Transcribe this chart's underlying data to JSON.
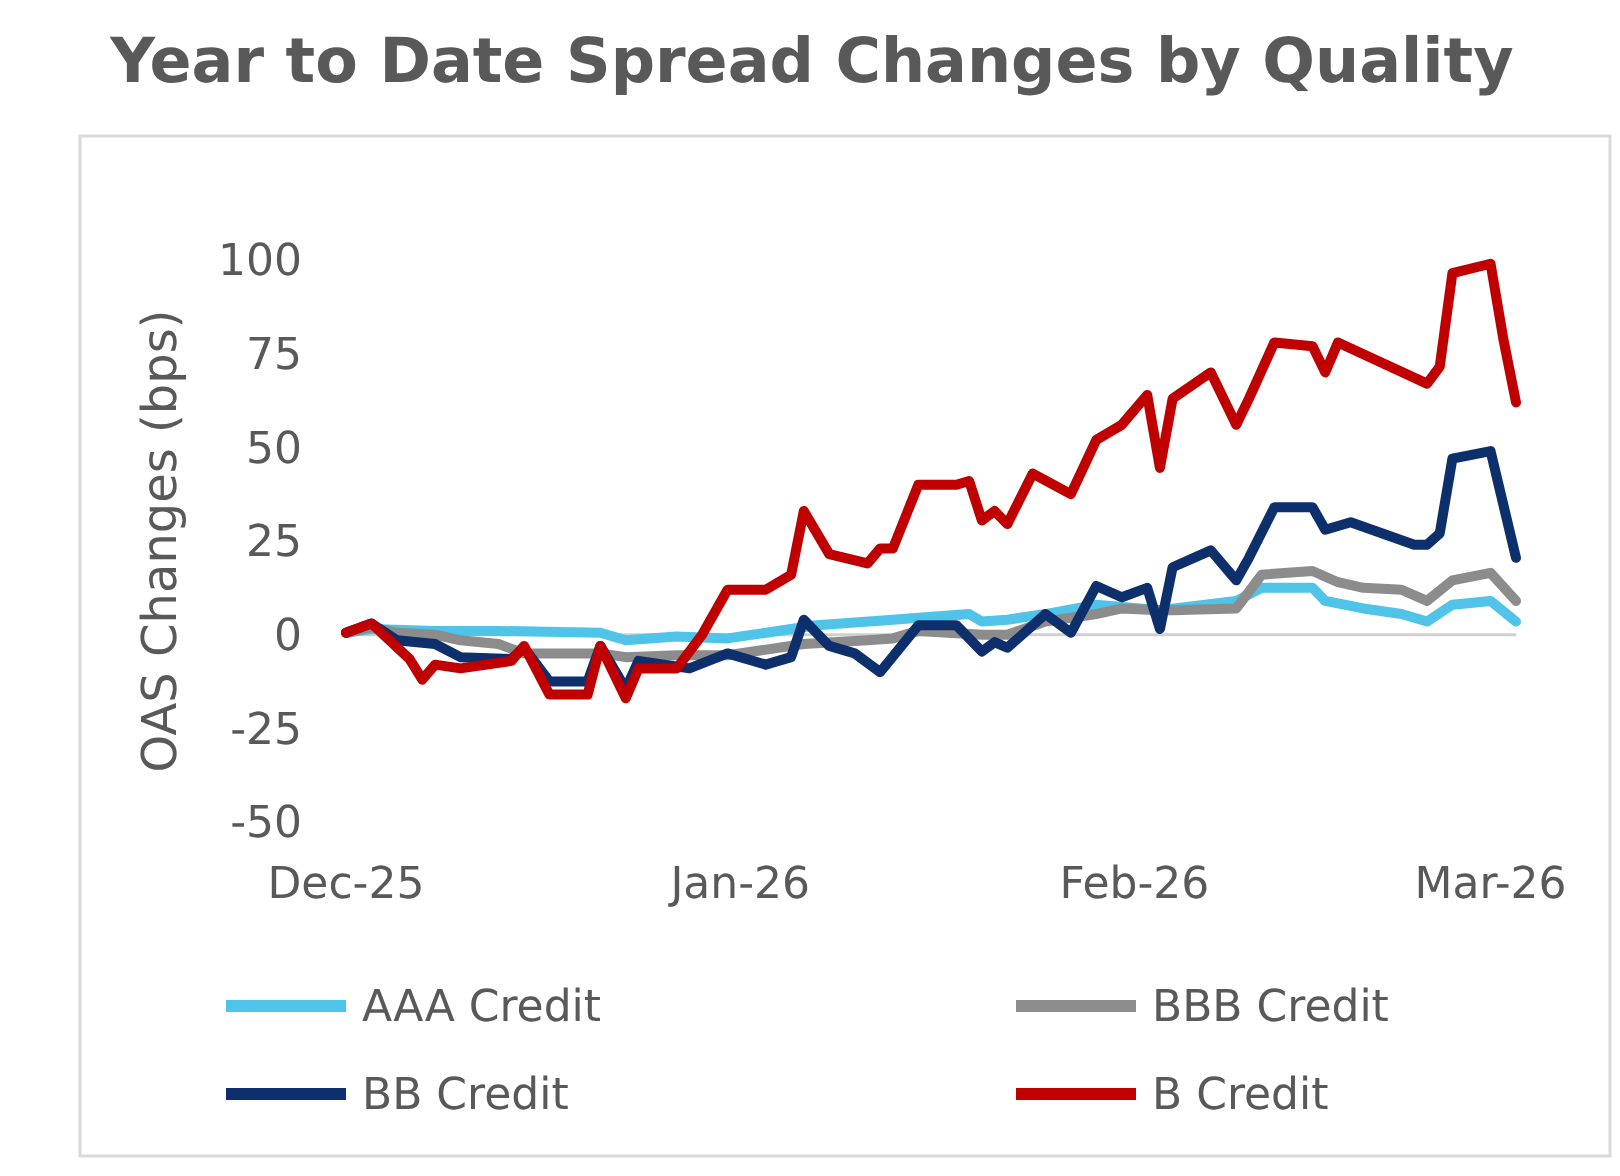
{
  "chart_data": {
    "type": "line",
    "title": "Year to Date Spread Changes by Quality",
    "ylabel": "OAS Changes (bps)",
    "xlim": [
      "2025-12-01",
      "2026-03-03"
    ],
    "xticks": [
      {
        "value": "2025-12-01",
        "label": "Dec-25"
      },
      {
        "value": "2026-01-01",
        "label": "Jan-26"
      },
      {
        "value": "2026-02-01",
        "label": "Feb-26"
      },
      {
        "value": "2026-03-01",
        "label": "Mar-26"
      }
    ],
    "ylim": [
      -50,
      100
    ],
    "yticks": [
      100,
      75,
      50,
      25,
      0,
      -25,
      -50
    ],
    "ref_lines": [
      {
        "axis": "y",
        "value": 0,
        "color": "#d0d0d0"
      }
    ],
    "legend": "bottom",
    "marker": "none",
    "line_style": "solid",
    "series": [
      {
        "name": "AAA Credit",
        "color": "#4fc3e8",
        "x": [
          "2025-12-01",
          "2025-12-03",
          "2025-12-08",
          "2025-12-13",
          "2025-12-21",
          "2025-12-23",
          "2025-12-27",
          "2025-12-31",
          "2026-01-02",
          "2026-01-07",
          "2026-01-13",
          "2026-01-15",
          "2026-01-19",
          "2026-01-20",
          "2026-01-22",
          "2026-01-25",
          "2026-01-29",
          "2026-02-03",
          "2026-02-09",
          "2026-02-11",
          "2026-02-15",
          "2026-02-16",
          "2026-02-19",
          "2026-02-22",
          "2026-02-24",
          "2026-02-26",
          "2026-03-01",
          "2026-03-03"
        ],
        "values": [
          0.5,
          1.5,
          1,
          1,
          0.5,
          -1.5,
          -0.5,
          -1,
          0,
          2.5,
          4,
          4.5,
          5.5,
          3.5,
          4,
          5.5,
          8,
          6.5,
          9,
          12.5,
          12.5,
          9,
          7,
          5.5,
          3.5,
          8,
          9,
          3.5
        ]
      },
      {
        "name": "BBB Credit",
        "color": "#8c8c8c",
        "x": [
          "2025-12-01",
          "2025-12-03",
          "2025-12-05",
          "2025-12-08",
          "2025-12-10",
          "2025-12-13",
          "2025-12-15",
          "2025-12-21",
          "2025-12-23",
          "2025-12-27",
          "2025-12-31",
          "2026-01-06",
          "2026-01-11",
          "2026-01-13",
          "2026-01-15",
          "2026-01-20",
          "2026-01-22",
          "2026-01-25",
          "2026-01-29",
          "2026-01-31",
          "2026-02-03",
          "2026-02-04",
          "2026-02-09",
          "2026-02-11",
          "2026-02-15",
          "2026-02-17",
          "2026-02-19",
          "2026-02-22",
          "2026-02-24",
          "2026-02-26",
          "2026-03-01",
          "2026-03-03"
        ],
        "values": [
          0.5,
          2,
          0.5,
          0,
          -1.5,
          -2.5,
          -5,
          -5,
          -6,
          -5.5,
          -5.5,
          -2.5,
          -1.5,
          -1,
          1,
          0,
          0,
          3.5,
          5.5,
          7,
          6.5,
          6.5,
          7,
          16,
          17,
          14,
          12.5,
          12,
          9,
          14.5,
          16.5,
          9
        ]
      },
      {
        "name": "BB Credit",
        "color": "#0d2f6b",
        "x": [
          "2025-12-01",
          "2025-12-03",
          "2025-12-05",
          "2025-12-08",
          "2025-12-10",
          "2025-12-14",
          "2025-12-15",
          "2025-12-17",
          "2025-12-20",
          "2025-12-21",
          "2025-12-23",
          "2025-12-24",
          "2025-12-28",
          "2025-12-31",
          "2026-01-03",
          "2026-01-05",
          "2026-01-06",
          "2026-01-08",
          "2026-01-10",
          "2026-01-12",
          "2026-01-15",
          "2026-01-18",
          "2026-01-20",
          "2026-01-21",
          "2026-01-22",
          "2026-01-25",
          "2026-01-27",
          "2026-01-29",
          "2026-01-31",
          "2026-02-02",
          "2026-02-03",
          "2026-02-04",
          "2026-02-07",
          "2026-02-09",
          "2026-02-10",
          "2026-02-12",
          "2026-02-15",
          "2026-02-16",
          "2026-02-18",
          "2026-02-23",
          "2026-02-24",
          "2026-02-25",
          "2026-02-26",
          "2026-03-01",
          "2026-03-03"
        ],
        "values": [
          0.5,
          3,
          -1.5,
          -2.5,
          -6,
          -6.5,
          -3.5,
          -12.5,
          -12.5,
          -3,
          -14.5,
          -7,
          -9,
          -5,
          -8,
          -6,
          4,
          -3,
          -5,
          -10,
          2.5,
          2.5,
          -4.5,
          -2,
          -3.5,
          5.5,
          0.5,
          13,
          10,
          12.5,
          1.5,
          18,
          22.5,
          14.5,
          20.5,
          34,
          34,
          28,
          30,
          24,
          24,
          27,
          47,
          49,
          20.5
        ]
      },
      {
        "name": "B Credit",
        "color": "#c00000",
        "x": [
          "2025-12-01",
          "2025-12-03",
          "2025-12-06",
          "2025-12-07",
          "2025-12-08",
          "2025-12-10",
          "2025-12-14",
          "2025-12-15",
          "2025-12-17",
          "2025-12-20",
          "2025-12-21",
          "2025-12-23",
          "2025-12-24",
          "2025-12-27",
          "2025-12-29",
          "2025-12-31",
          "2026-01-03",
          "2026-01-05",
          "2026-01-06",
          "2026-01-08",
          "2026-01-11",
          "2026-01-12",
          "2026-01-13",
          "2026-01-15",
          "2026-01-18",
          "2026-01-19",
          "2026-01-20",
          "2026-01-21",
          "2026-01-22",
          "2026-01-24",
          "2026-01-27",
          "2026-01-29",
          "2026-01-31",
          "2026-02-02",
          "2026-02-03",
          "2026-02-04",
          "2026-02-07",
          "2026-02-09",
          "2026-02-10",
          "2026-02-12",
          "2026-02-15",
          "2026-02-16",
          "2026-02-17",
          "2026-02-24",
          "2026-02-25",
          "2026-02-26",
          "2026-03-01",
          "2026-03-02",
          "2026-03-03"
        ],
        "values": [
          0.5,
          3,
          -6.5,
          -12,
          -8,
          -9,
          -7,
          -3,
          -16,
          -16,
          -3,
          -17,
          -9,
          -9,
          0,
          12,
          12,
          16,
          33,
          21.5,
          19,
          23,
          23,
          40,
          40,
          41,
          30.5,
          33,
          29.5,
          43,
          37.5,
          52,
          56,
          64,
          44.5,
          63,
          70,
          56,
          63,
          78,
          77,
          70,
          78,
          67,
          71.5,
          96.5,
          99,
          79,
          62
        ]
      }
    ]
  }
}
